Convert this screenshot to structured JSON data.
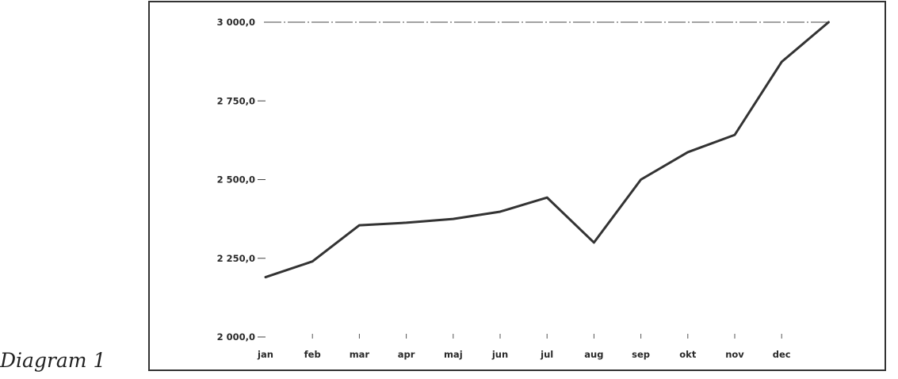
{
  "caption": "Diagram 1",
  "chart_data": {
    "type": "line",
    "title": "",
    "xlabel": "",
    "ylabel": "",
    "categories": [
      "jan",
      "feb",
      "mar",
      "apr",
      "maj",
      "jun",
      "jul",
      "aug",
      "sep",
      "okt",
      "nov",
      "dec",
      ""
    ],
    "series": [
      {
        "values": [
          2190,
          2240,
          2355,
          2363,
          2375,
          2398,
          2443,
          2300,
          2500,
          2587,
          2642,
          2874,
          3000
        ]
      }
    ],
    "ylim": [
      2000,
      3000
    ],
    "yticks": [
      2000,
      2250,
      2500,
      2750,
      3000
    ],
    "ytick_labels": [
      "2 000,0",
      "2 250,0",
      "2 500,0",
      "2 750,0",
      "3 000,0"
    ],
    "reference_line": {
      "value": 3000,
      "style": "dash-dot"
    },
    "grid": false,
    "line_color": "#333333"
  }
}
